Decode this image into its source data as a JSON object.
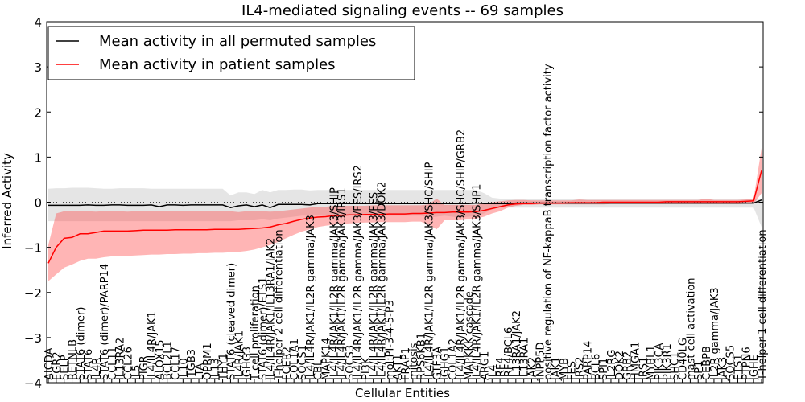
{
  "chart_data": {
    "type": "line",
    "title": "IL4-mediated signaling events -- 69 samples",
    "xlabel": "Cellular Entities",
    "ylabel": "Inferred Activity",
    "ylim": [
      -4,
      4
    ],
    "yticks": [
      "4",
      "3",
      "2",
      "1",
      "0",
      "−1",
      "−2",
      "−3",
      "−4"
    ],
    "ytick_values": [
      4,
      3,
      2,
      1,
      0,
      -1,
      -2,
      -3,
      -4
    ],
    "grid": false,
    "reference_line": 0,
    "legend": {
      "placement": "top-left",
      "entries": [
        {
          "label": "Mean activity in all permuted samples",
          "color": "#000000"
        },
        {
          "label": "Mean activity in patient samples",
          "color": "#ff0000"
        }
      ]
    },
    "categories": [
      "AICDA",
      "EGR2",
      "SELP",
      "RETNLB",
      "STAT6 (dimer)",
      "STAT6",
      "IL4R",
      "STAT6 (dimer)/PARP14",
      "CCL11",
      "IL13RA2",
      "CCL26",
      "IL5",
      "PIGR",
      "IL4/IL4R/JAK1",
      "ALOX15",
      "BCL2L1",
      "CCL17",
      "IL10",
      "ITGB3",
      "LTA",
      "OPRM1",
      "IL13",
      "THY1",
      "STAT6 (cleaved dimer)",
      "IL4R/JAK1",
      "IGHG3",
      "T cell proliferation",
      "STAT6 (dimer)/ETS1",
      "IL4/IL4R/JAK1/IL13RA1/JAK2",
      "T-helper 2 cell differentiation",
      "FCER2",
      "COL1A1",
      "SOCS1",
      "IL4/IL4R/JAK1/IL2R gamma/JAK3",
      "CBL",
      "MAPK14",
      "IL4/IL4R/JAK1/IL2R gamma/JAK3/SHIP",
      "IL4/IL4R/JAK1/IL2R gamma/JAK3/IRS1",
      "SOCS3",
      "IL4/IL4R/JAK1/IL2R gamma/JAK3/FES/IRS2",
      "PI3K",
      "IL4/IL4R/JAK1/IL2R gamma/JAK3/FES",
      "IL4/IL4R/JAK1/IL2R gamma/JAK3/DOK2",
      "mol:PI-3-4-5-P3",
      "AKT1",
      "FRAP1",
      "mitosis",
      "RPS6KB1",
      "IL4/IL4R/JAK1/IL2R gamma/JAK3/SHC/SHIP",
      "GTF3A",
      "IGHG1",
      "COL1A2",
      "IL4/IL4R/JAK1/IL2R gamma/JAK3/SHC/SHIP/GRB2",
      "MAPKKK cascade",
      "IL4/IL4R/JAK1/IL2R gamma/JAK3/SHP1",
      "ARG1",
      "IL4",
      "IRF4",
      "IRF4/BCL6",
      "IL13RA1/JAK2",
      "IL13RA1",
      "JAK2",
      "INPP5D",
      "positive regulation of NF-kappaB transcription factor activity",
      "JAK1",
      "MYB",
      "FES",
      "IRS2",
      "PARP14",
      "BCL6",
      "SPI1",
      "IL2RG",
      "DOK2",
      "GRB2",
      "HMGA1",
      "IRS1",
      "MYBL1",
      "PIK3CA",
      "PIK3R1",
      "SHC1",
      "CD40LG",
      "mast cell activation",
      "SP1",
      "CEBPB",
      "IL2R gamma/JAK3",
      "JAK3",
      "SOCS5",
      "ETS1",
      "PTPN6",
      "IGHE",
      "T-helper 1 cell differentiation"
    ],
    "series": [
      {
        "name": "Mean activity in all permuted samples",
        "color": "#000000",
        "values": [
          -0.07,
          -0.07,
          -0.07,
          -0.07,
          -0.07,
          -0.06,
          -0.07,
          -0.07,
          -0.06,
          -0.06,
          -0.07,
          -0.07,
          -0.07,
          -0.06,
          -0.1,
          -0.06,
          -0.06,
          -0.07,
          -0.06,
          -0.06,
          -0.06,
          -0.06,
          -0.06,
          -0.12,
          -0.08,
          -0.06,
          -0.1,
          -0.06,
          -0.12,
          -0.05,
          -0.05,
          -0.05,
          -0.05,
          -0.06,
          -0.03,
          -0.03,
          -0.03,
          -0.03,
          -0.03,
          -0.03,
          -0.03,
          -0.03,
          -0.03,
          -0.03,
          -0.03,
          -0.03,
          -0.03,
          -0.03,
          -0.03,
          -0.03,
          -0.03,
          -0.03,
          -0.03,
          -0.03,
          -0.02,
          -0.03,
          -0.03,
          -0.03,
          -0.03,
          -0.02,
          -0.02,
          -0.02,
          -0.02,
          -0.02,
          -0.02,
          -0.02,
          -0.02,
          -0.02,
          -0.02,
          -0.02,
          -0.02,
          -0.02,
          -0.02,
          -0.02,
          -0.02,
          -0.02,
          -0.02,
          -0.02,
          -0.02,
          -0.02,
          -0.02,
          -0.02,
          -0.02,
          -0.02,
          -0.02,
          -0.02,
          -0.02,
          -0.02,
          -0.02,
          -0.02,
          0.05
        ],
        "band_upper": [
          0.3,
          0.31,
          0.31,
          0.32,
          0.32,
          0.32,
          0.31,
          0.3,
          0.3,
          0.31,
          0.31,
          0.31,
          0.31,
          0.3,
          0.3,
          0.3,
          0.3,
          0.3,
          0.3,
          0.3,
          0.3,
          0.3,
          0.3,
          0.15,
          0.22,
          0.22,
          0.18,
          0.27,
          0.22,
          0.27,
          0.27,
          0.28,
          0.28,
          0.26,
          0.27,
          0.27,
          0.27,
          0.27,
          0.27,
          0.27,
          0.27,
          0.27,
          0.27,
          0.27,
          0.27,
          0.27,
          0.27,
          0.27,
          0.27,
          0.27,
          0.27,
          0.27,
          0.27,
          0.27,
          0.27,
          0.2,
          0.1,
          0.08,
          0.08,
          0.08,
          0.08,
          0.08,
          0.08,
          0.08,
          0.08,
          0.08,
          0.08,
          0.08,
          0.08,
          0.08,
          0.08,
          0.08,
          0.08,
          0.08,
          0.08,
          0.08,
          0.08,
          0.08,
          0.08,
          0.08,
          0.08,
          0.08,
          0.08,
          0.08,
          0.08,
          0.08,
          0.08,
          0.08,
          0.08,
          0.08,
          0.07
        ],
        "band_lower": [
          -0.42,
          -0.42,
          -0.42,
          -0.42,
          -0.42,
          -0.42,
          -0.42,
          -0.42,
          -0.42,
          -0.42,
          -0.42,
          -0.42,
          -0.42,
          -0.42,
          -0.42,
          -0.42,
          -0.42,
          -0.42,
          -0.42,
          -0.42,
          -0.42,
          -0.42,
          -0.42,
          -0.42,
          -0.4,
          -0.4,
          -0.4,
          -0.38,
          -0.4,
          -0.36,
          -0.34,
          -0.32,
          -0.3,
          -0.3,
          -0.3,
          -0.3,
          -0.3,
          -0.3,
          -0.3,
          -0.3,
          -0.3,
          -0.3,
          -0.3,
          -0.3,
          -0.3,
          -0.3,
          -0.3,
          -0.3,
          -0.34,
          -0.32,
          -0.3,
          -0.32,
          -0.34,
          -0.32,
          -0.3,
          -0.25,
          -0.15,
          -0.12,
          -0.12,
          -0.12,
          -0.12,
          -0.12,
          -0.12,
          -0.12,
          -0.12,
          -0.12,
          -0.12,
          -0.12,
          -0.12,
          -0.12,
          -0.12,
          -0.12,
          -0.12,
          -0.12,
          -0.12,
          -0.12,
          -0.12,
          -0.12,
          -0.12,
          -0.12,
          -0.12,
          -0.12,
          -0.12,
          -0.12,
          -0.12,
          -0.12,
          -0.12,
          -0.12,
          -0.12,
          -0.12,
          -0.55
        ]
      },
      {
        "name": "Mean activity in patient samples",
        "color": "#ff0000",
        "values": [
          -1.35,
          -1.0,
          -0.8,
          -0.78,
          -0.7,
          -0.7,
          -0.67,
          -0.64,
          -0.64,
          -0.64,
          -0.64,
          -0.63,
          -0.62,
          -0.62,
          -0.62,
          -0.62,
          -0.61,
          -0.61,
          -0.61,
          -0.61,
          -0.61,
          -0.6,
          -0.6,
          -0.6,
          -0.6,
          -0.59,
          -0.58,
          -0.57,
          -0.55,
          -0.5,
          -0.47,
          -0.42,
          -0.38,
          -0.35,
          -0.33,
          -0.32,
          -0.3,
          -0.29,
          -0.28,
          -0.28,
          -0.27,
          -0.27,
          -0.27,
          -0.26,
          -0.26,
          -0.26,
          -0.25,
          -0.25,
          -0.24,
          -0.23,
          -0.23,
          -0.22,
          -0.22,
          -0.22,
          -0.21,
          -0.18,
          -0.14,
          -0.1,
          -0.06,
          -0.04,
          -0.03,
          -0.03,
          -0.02,
          -0.02,
          -0.02,
          -0.02,
          -0.01,
          -0.01,
          -0.01,
          -0.01,
          0.0,
          0.0,
          0.0,
          0.0,
          0.0,
          0.0,
          0.0,
          0.0,
          0.01,
          0.01,
          0.01,
          0.01,
          0.01,
          0.01,
          0.01,
          0.01,
          0.01,
          0.01,
          0.02,
          0.03,
          0.7
        ],
        "band_upper": [
          -0.95,
          -0.25,
          -0.2,
          -0.2,
          -0.2,
          -0.2,
          -0.21,
          -0.2,
          -0.19,
          -0.2,
          -0.21,
          -0.2,
          -0.2,
          -0.2,
          -0.2,
          -0.2,
          -0.2,
          -0.2,
          -0.2,
          -0.2,
          -0.2,
          -0.2,
          -0.2,
          -0.2,
          -0.22,
          -0.2,
          -0.19,
          -0.2,
          -0.21,
          -0.2,
          -0.18,
          -0.16,
          -0.14,
          -0.12,
          -0.1,
          -0.1,
          -0.08,
          -0.08,
          -0.08,
          -0.08,
          -0.08,
          -0.07,
          -0.07,
          -0.07,
          -0.07,
          -0.07,
          -0.07,
          -0.07,
          -0.05,
          0.08,
          -0.06,
          -0.06,
          -0.06,
          -0.06,
          -0.06,
          -0.02,
          0.0,
          0.02,
          0.04,
          0.05,
          0.05,
          0.04,
          0.04,
          0.04,
          0.04,
          0.04,
          0.04,
          0.06,
          0.05,
          0.05,
          0.05,
          0.05,
          0.05,
          0.05,
          0.05,
          0.05,
          0.05,
          0.05,
          0.05,
          0.05,
          0.05,
          0.05,
          0.05,
          0.08,
          0.05,
          0.05,
          0.05,
          0.05,
          0.06,
          0.08,
          1.2
        ],
        "band_lower": [
          -1.75,
          -1.6,
          -1.45,
          -1.38,
          -1.3,
          -1.25,
          -1.25,
          -1.22,
          -1.2,
          -1.19,
          -1.19,
          -1.18,
          -1.17,
          -1.16,
          -1.16,
          -1.15,
          -1.15,
          -1.14,
          -1.14,
          -1.13,
          -1.13,
          -1.12,
          -1.12,
          -1.11,
          -1.1,
          -1.08,
          -1.05,
          -1.0,
          -0.95,
          -0.88,
          -0.8,
          -0.72,
          -0.65,
          -0.6,
          -0.55,
          -0.52,
          -0.5,
          -0.48,
          -0.47,
          -0.46,
          -0.45,
          -0.45,
          -0.44,
          -0.44,
          -0.44,
          -0.44,
          -0.43,
          -0.43,
          -0.5,
          -0.6,
          -0.4,
          -0.4,
          -0.4,
          -0.38,
          -0.36,
          -0.32,
          -0.25,
          -0.2,
          -0.12,
          -0.08,
          -0.06,
          -0.06,
          -0.05,
          -0.05,
          -0.05,
          -0.05,
          -0.05,
          -0.05,
          -0.05,
          -0.05,
          -0.05,
          -0.04,
          -0.04,
          -0.04,
          -0.04,
          -0.04,
          -0.04,
          -0.04,
          -0.04,
          -0.04,
          -0.04,
          -0.04,
          -0.04,
          -0.04,
          -0.04,
          -0.04,
          -0.04,
          -0.04,
          -0.03,
          -0.03,
          0.2
        ]
      }
    ]
  }
}
